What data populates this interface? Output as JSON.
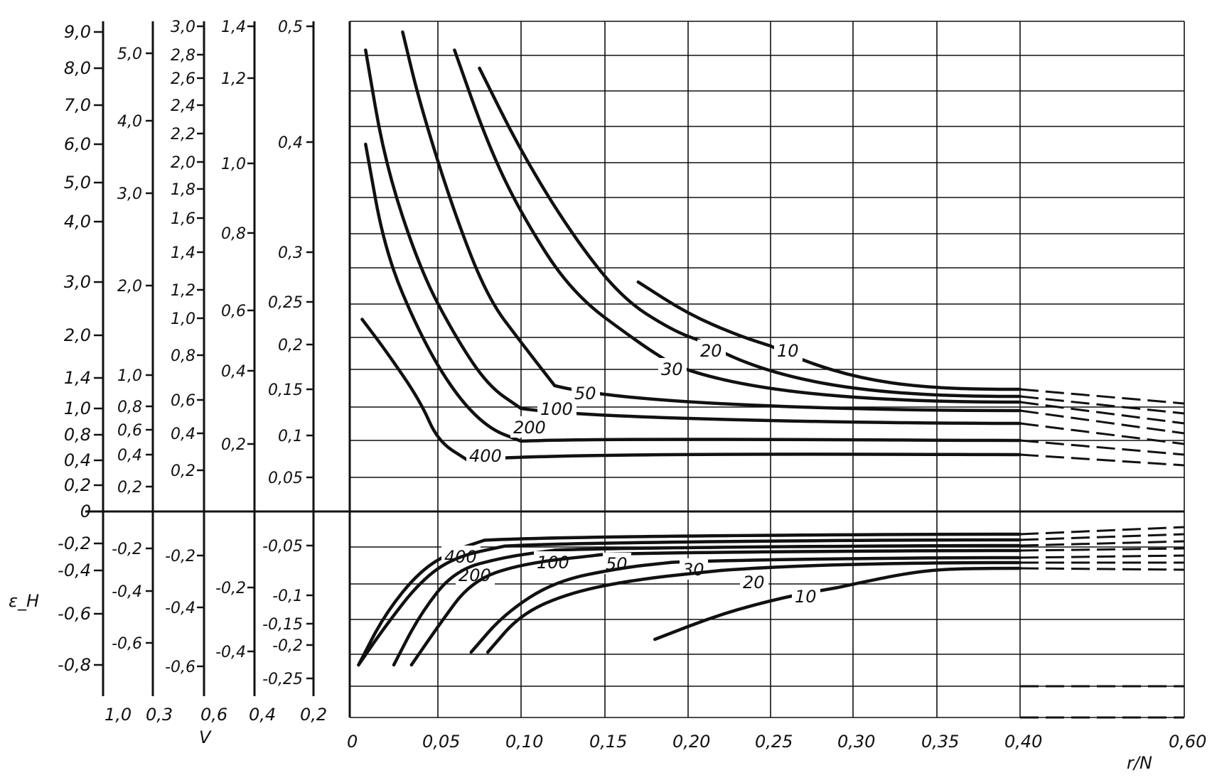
{
  "chart_data": {
    "type": "line",
    "title": "",
    "xlabel": "r/N",
    "ylabel": "ε_H",
    "bottom_scale_label": "V",
    "x_tick_labels": [
      "0",
      "0,05",
      "0,10",
      "0,15",
      "0,20",
      "0,25",
      "0,30",
      "0,35",
      "0,40",
      "0,60"
    ],
    "x_ticks": [
      0,
      0.05,
      0.1,
      0.15,
      0.2,
      0.25,
      0.3,
      0.35,
      0.4,
      0.6
    ],
    "grid": true,
    "xlim": [
      0,
      0.6
    ],
    "y_main_ticks": [
      {
        "label": "9,0",
        "value": 9.0
      },
      {
        "label": "8,0",
        "value": 8.0
      },
      {
        "label": "7,0",
        "value": 7.0
      },
      {
        "label": "6,0",
        "value": 6.0
      },
      {
        "label": "5,0",
        "value": 5.0
      },
      {
        "label": "4,0",
        "value": 4.0
      },
      {
        "label": "3,0",
        "value": 3.0
      },
      {
        "label": "2,0",
        "value": 2.0
      },
      {
        "label": "1,4",
        "value": 1.4
      },
      {
        "label": "1,0",
        "value": 1.0
      },
      {
        "label": "0,8",
        "value": 0.8
      },
      {
        "label": "0,4",
        "value": 0.4
      },
      {
        "label": "0,2",
        "value": 0.2
      },
      {
        "label": "0",
        "value": 0
      },
      {
        "label": "-0,2",
        "value": -0.2
      },
      {
        "label": "-0,4",
        "value": -0.4
      },
      {
        "label": "-0,6",
        "value": -0.6
      },
      {
        "label": "-0,8",
        "value": -0.8
      }
    ],
    "side_scales": [
      {
        "v_label": "1,0",
        "ticks": [
          {
            "label": "5,0",
            "value": 5.0
          },
          {
            "label": "4,0",
            "value": 4.0
          },
          {
            "label": "3,0",
            "value": 3.0
          },
          {
            "label": "2,0",
            "value": 2.0
          },
          {
            "label": "1,0",
            "value": 1.0
          },
          {
            "label": "0,8",
            "value": 0.8
          },
          {
            "label": "0,6",
            "value": 0.6
          },
          {
            "label": "0,4",
            "value": 0.4
          },
          {
            "label": "0,2",
            "value": 0.2
          },
          {
            "label": "-0,2",
            "value": -0.2
          },
          {
            "label": "-0,4",
            "value": -0.4
          },
          {
            "label": "-0,6",
            "value": -0.6
          }
        ]
      },
      {
        "v_label": "0,3",
        "ticks": [
          {
            "label": "3,0",
            "value": 3.0
          },
          {
            "label": "2,8",
            "value": 2.8
          },
          {
            "label": "2,6",
            "value": 2.6
          },
          {
            "label": "2,4",
            "value": 2.4
          },
          {
            "label": "2,2",
            "value": 2.2
          },
          {
            "label": "2,0",
            "value": 2.0
          },
          {
            "label": "1,8",
            "value": 1.8
          },
          {
            "label": "1,6",
            "value": 1.6
          },
          {
            "label": "1,4",
            "value": 1.4
          },
          {
            "label": "1,2",
            "value": 1.2
          },
          {
            "label": "1,0",
            "value": 1.0
          },
          {
            "label": "0,8",
            "value": 0.8
          },
          {
            "label": "0,6",
            "value": 0.6
          },
          {
            "label": "0,4",
            "value": 0.4
          },
          {
            "label": "0,2",
            "value": 0.2
          },
          {
            "label": "-0,2",
            "value": -0.2
          },
          {
            "label": "-0,4",
            "value": -0.4
          },
          {
            "label": "-0,6",
            "value": -0.6
          }
        ]
      },
      {
        "v_label": "0,6",
        "ticks": [
          {
            "label": "1,4",
            "value": 1.4
          },
          {
            "label": "1,2",
            "value": 1.2
          },
          {
            "label": "1,0",
            "value": 1.0
          },
          {
            "label": "0,8",
            "value": 0.8
          },
          {
            "label": "0,6",
            "value": 0.6
          },
          {
            "label": "0,4",
            "value": 0.4
          },
          {
            "label": "0,2",
            "value": 0.2
          },
          {
            "label": "-0,2",
            "value": -0.2
          },
          {
            "label": "-0,4",
            "value": -0.4
          }
        ]
      },
      {
        "v_label": "0,4",
        "ticks": [
          {
            "label": "0,5",
            "value": 0.5
          },
          {
            "label": "0,4",
            "value": 0.4
          },
          {
            "label": "0,3",
            "value": 0.3
          },
          {
            "label": "0,25",
            "value": 0.25
          },
          {
            "label": "0,2",
            "value": 0.2
          },
          {
            "label": "0,15",
            "value": 0.15
          },
          {
            "label": "0,1",
            "value": 0.1
          },
          {
            "label": "0,05",
            "value": 0.05
          },
          {
            "label": "-0,05",
            "value": -0.05
          },
          {
            "label": "-0,1",
            "value": -0.1
          },
          {
            "label": "-0,15",
            "value": -0.15
          },
          {
            "label": "-0,2",
            "value": -0.2
          },
          {
            "label": "-0,25",
            "value": -0.25
          }
        ]
      },
      {
        "v_label": "0,2",
        "ticks": []
      }
    ],
    "series": [
      {
        "name": "400",
        "positive": [
          [
            0.007,
            2.3
          ],
          [
            0.02,
            1.8
          ],
          [
            0.04,
            1.1
          ],
          [
            0.05,
            0.7
          ],
          [
            0.068,
            0.4
          ]
        ],
        "negative": [
          [
            0.005,
            -0.8
          ],
          [
            0.02,
            -0.6
          ],
          [
            0.04,
            -0.4
          ],
          [
            0.06,
            -0.25
          ],
          [
            0.078,
            -0.18
          ]
        ]
      },
      {
        "name": "200",
        "positive": [
          [
            0.009,
            6.0
          ],
          [
            0.02,
            3.5
          ],
          [
            0.04,
            2.0
          ],
          [
            0.06,
            1.2
          ],
          [
            0.08,
            0.85
          ],
          [
            0.1,
            0.7
          ]
        ],
        "negative": [
          [
            0.005,
            -0.85
          ],
          [
            0.02,
            -0.65
          ],
          [
            0.04,
            -0.45
          ],
          [
            0.06,
            -0.3
          ],
          [
            0.09,
            -0.22
          ]
        ]
      },
      {
        "name": "100",
        "positive": [
          [
            0.009,
            8.5
          ],
          [
            0.02,
            5.5
          ],
          [
            0.04,
            3.2
          ],
          [
            0.06,
            2.0
          ],
          [
            0.08,
            1.3
          ],
          [
            0.1,
            1.0
          ]
        ],
        "negative": [
          [
            0.025,
            -0.85
          ],
          [
            0.04,
            -0.6
          ],
          [
            0.06,
            -0.4
          ],
          [
            0.09,
            -0.3
          ],
          [
            0.12,
            -0.25
          ]
        ]
      },
      {
        "name": "50",
        "positive": [
          [
            0.03,
            9.5
          ],
          [
            0.04,
            7.0
          ],
          [
            0.06,
            4.2
          ],
          [
            0.08,
            2.7
          ],
          [
            0.1,
            1.9
          ],
          [
            0.12,
            1.3
          ]
        ],
        "negative": [
          [
            0.035,
            -0.85
          ],
          [
            0.05,
            -0.65
          ],
          [
            0.07,
            -0.45
          ],
          [
            0.1,
            -0.35
          ],
          [
            0.15,
            -0.28
          ]
        ]
      },
      {
        "name": "30",
        "positive": [
          [
            0.06,
            8.5
          ],
          [
            0.08,
            6.0
          ],
          [
            0.1,
            4.2
          ],
          [
            0.13,
            2.8
          ],
          [
            0.17,
            1.9
          ],
          [
            0.19,
            1.6
          ]
        ],
        "negative": [
          [
            0.07,
            -0.75
          ],
          [
            0.09,
            -0.6
          ],
          [
            0.12,
            -0.45
          ],
          [
            0.16,
            -0.38
          ],
          [
            0.19,
            -0.34
          ]
        ]
      },
      {
        "name": "20",
        "positive": [
          [
            0.075,
            8.0
          ],
          [
            0.1,
            5.8
          ],
          [
            0.13,
            3.8
          ],
          [
            0.16,
            2.7
          ],
          [
            0.19,
            2.1
          ],
          [
            0.21,
            1.9
          ]
        ],
        "negative": [
          [
            0.08,
            -0.75
          ],
          [
            0.1,
            -0.6
          ],
          [
            0.13,
            -0.5
          ],
          [
            0.17,
            -0.44
          ],
          [
            0.22,
            -0.4
          ]
        ]
      },
      {
        "name": "10",
        "positive": [
          [
            0.17,
            3.0
          ],
          [
            0.2,
            2.4
          ],
          [
            0.23,
            2.0
          ],
          [
            0.25,
            1.85
          ]
        ],
        "negative": [
          [
            0.18,
            -0.7
          ],
          [
            0.22,
            -0.6
          ],
          [
            0.26,
            -0.52
          ],
          [
            0.29,
            -0.48
          ]
        ]
      }
    ],
    "curve_labels": [
      "400",
      "200",
      "100",
      "50",
      "30",
      "20",
      "10"
    ]
  }
}
